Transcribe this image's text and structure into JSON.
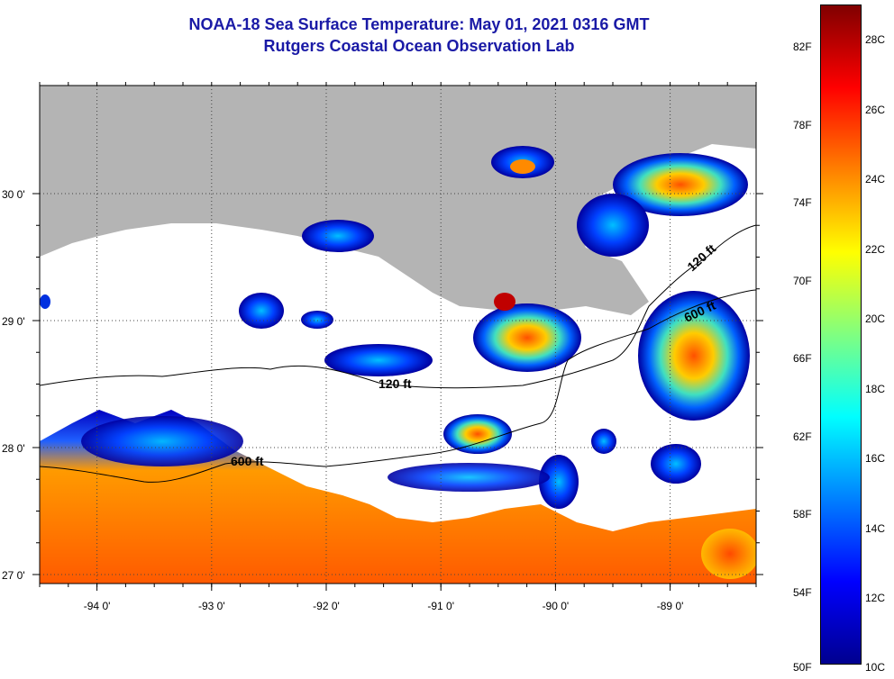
{
  "title": {
    "line1": "NOAA-18 Sea Surface Temperature:  May 01, 2021 0316 GMT",
    "line2": "Rutgers Coastal Ocean Observation Lab"
  },
  "map": {
    "lon_range": [
      -94.5,
      -88.25
    ],
    "lat_range": [
      26.95,
      29.95
    ],
    "lon_ticks": [
      {
        "value": -94,
        "label": "-94 0'"
      },
      {
        "value": -93,
        "label": "-93 0'"
      },
      {
        "value": -92,
        "label": "-92 0'"
      },
      {
        "value": -91,
        "label": "-91 0'"
      },
      {
        "value": -90,
        "label": "-90 0'"
      },
      {
        "value": -89,
        "label": "-89 0'"
      }
    ],
    "lat_ticks": [
      {
        "value": 30,
        "label": "30 0'"
      },
      {
        "value": 29,
        "label": "29 0'"
      },
      {
        "value": 28,
        "label": "28 0'"
      },
      {
        "value": 27,
        "label": "27 0'"
      }
    ],
    "land_color": "#b4b4b4",
    "contours": [
      {
        "label": "120 ft"
      },
      {
        "label": "600 ft"
      }
    ]
  },
  "colorbar": {
    "fahrenheit_labels": [
      "82F",
      "78F",
      "74F",
      "70F",
      "66F",
      "62F",
      "58F",
      "54F",
      "50F"
    ],
    "celsius_labels": [
      "28C",
      "26C",
      "24C",
      "22C",
      "20C",
      "18C",
      "16C",
      "14C",
      "12C",
      "10C"
    ],
    "colors": [
      "#00008f",
      "#0000ff",
      "#0080ff",
      "#00ffff",
      "#80ff80",
      "#ffff00",
      "#ff8000",
      "#ff0000",
      "#800000"
    ]
  }
}
